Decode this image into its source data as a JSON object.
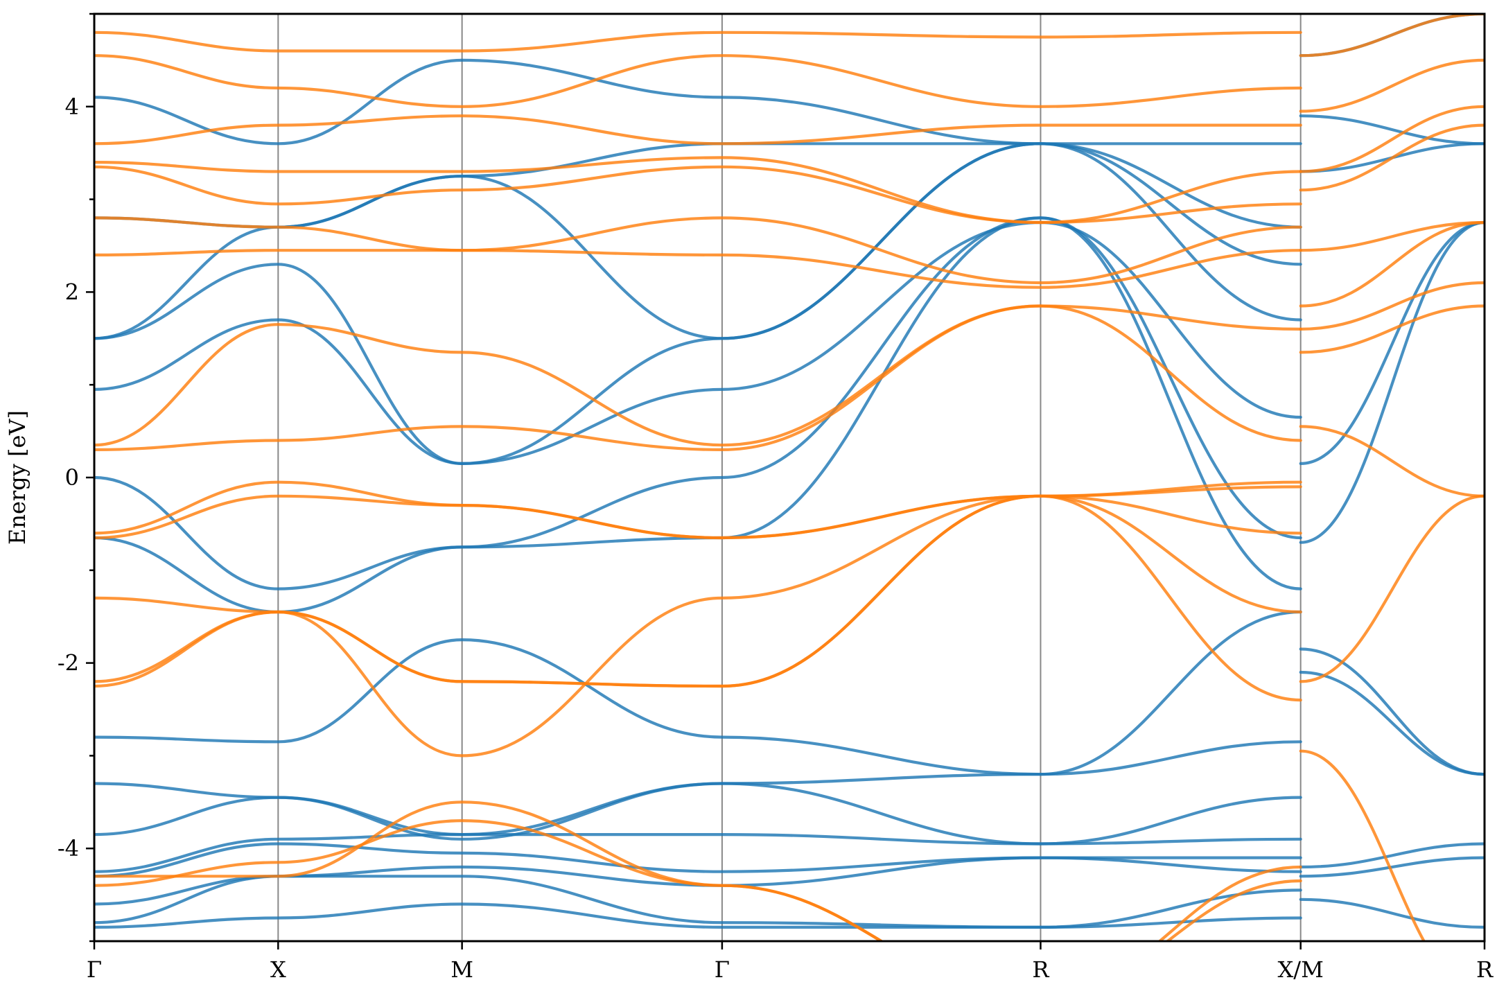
{
  "chart_data": {
    "type": "line",
    "ylabel": "Energy [eV]",
    "ylim": [
      -5,
      5
    ],
    "yticks": [
      -4,
      -2,
      0,
      2,
      4
    ],
    "kpoints": [
      {
        "label": "Γ",
        "k": 0.0
      },
      {
        "label": "X",
        "k": 0.5
      },
      {
        "label": "M",
        "k": 1.0
      },
      {
        "label": "Γ",
        "k": 1.7071
      },
      {
        "label": "R",
        "k": 2.5731
      },
      {
        "label": "X/M",
        "k": 3.2802
      },
      {
        "label": "R",
        "k": 3.7802
      }
    ],
    "colors": {
      "series_1": "#1f77b4",
      "series_2": "#ff7f0e"
    },
    "series": [
      {
        "color": "#1f77b4",
        "segments": [
          {
            "x": [
              0,
              0.5,
              1.0,
              1.7071,
              2.5731,
              3.2802
            ],
            "bands": [
              [
                -4.85,
                -4.75,
                -4.6,
                -4.85,
                -4.85,
                -4.75
              ],
              [
                -4.8,
                -4.3,
                -4.3,
                -4.8,
                -4.85,
                -4.45
              ],
              [
                -4.6,
                -4.3,
                -4.2,
                -4.4,
                -4.1,
                -4.25
              ],
              [
                -4.3,
                -3.95,
                -4.05,
                -4.25,
                -4.1,
                -4.1
              ],
              [
                -4.25,
                -3.9,
                -3.85,
                -3.85,
                -3.95,
                -3.9
              ],
              [
                -3.85,
                -3.45,
                -3.85,
                -3.3,
                -3.95,
                -3.45
              ],
              [
                -3.3,
                -3.45,
                -3.9,
                -3.3,
                -3.2,
                -2.85
              ],
              [
                -2.8,
                -2.85,
                -1.75,
                -2.8,
                -3.2,
                -1.45
              ],
              [
                -0.65,
                -1.45,
                -0.75,
                -0.65,
                2.8,
                -1.2
              ],
              [
                0.0,
                -1.2,
                -0.75,
                0.0,
                2.8,
                -0.65
              ],
              [
                0.95,
                1.7,
                0.15,
                0.95,
                2.75,
                0.65
              ],
              [
                1.5,
                2.3,
                0.15,
                1.5,
                3.6,
                1.7
              ],
              [
                1.5,
                2.7,
                3.25,
                1.5,
                3.6,
                2.3
              ],
              [
                2.8,
                2.7,
                3.25,
                3.6,
                3.6,
                2.7
              ],
              [
                4.1,
                3.6,
                4.5,
                4.1,
                3.6,
                3.6
              ]
            ]
          },
          {
            "x": [
              3.2802,
              3.7802
            ],
            "bands": [
              [
                -4.55,
                -4.85
              ],
              [
                -4.3,
                -4.1
              ],
              [
                -4.2,
                -3.95
              ],
              [
                -2.1,
                -3.2
              ],
              [
                -1.85,
                -3.2
              ],
              [
                -0.7,
                2.75
              ],
              [
                0.15,
                2.75
              ],
              [
                3.3,
                3.6
              ],
              [
                3.9,
                3.6
              ],
              [
                4.55,
                5.0
              ]
            ]
          }
        ]
      },
      {
        "color": "#ff7f0e",
        "segments": [
          {
            "x": [
              0,
              0.5,
              1.0,
              1.7071,
              2.5731,
              3.2802
            ],
            "bands": [
              [
                -4.4,
                -4.15,
                -3.7,
                -4.4,
                -5.6,
                -4.35
              ],
              [
                -4.3,
                -4.3,
                -3.5,
                -4.4,
                -5.6,
                -4.2
              ],
              [
                -2.25,
                -1.45,
                -2.2,
                -2.25,
                -0.2,
                -2.4
              ],
              [
                -2.2,
                -1.45,
                -2.2,
                -2.25,
                -0.2,
                -1.45
              ],
              [
                -1.3,
                -1.45,
                -3.0,
                -1.3,
                -0.2,
                -0.6
              ],
              [
                -0.65,
                -0.2,
                -0.3,
                -0.65,
                -0.2,
                -0.1
              ],
              [
                -0.6,
                -0.05,
                -0.3,
                -0.65,
                -0.2,
                -0.05
              ],
              [
                0.3,
                0.4,
                0.55,
                0.3,
                1.85,
                0.4
              ],
              [
                0.35,
                1.65,
                1.35,
                0.35,
                1.85,
                1.6
              ],
              [
                2.4,
                2.45,
                2.45,
                2.4,
                2.05,
                2.45
              ],
              [
                2.8,
                2.7,
                2.45,
                2.8,
                2.1,
                2.7
              ],
              [
                3.35,
                2.95,
                3.1,
                3.35,
                2.75,
                2.95
              ],
              [
                3.4,
                3.3,
                3.3,
                3.45,
                2.75,
                3.3
              ],
              [
                3.6,
                3.8,
                3.9,
                3.6,
                3.8,
                3.8
              ],
              [
                4.55,
                4.2,
                4.0,
                4.55,
                4.0,
                4.2
              ],
              [
                4.8,
                4.6,
                4.6,
                4.8,
                4.75,
                4.8
              ]
            ]
          },
          {
            "x": [
              3.2802,
              3.7802
            ],
            "bands": [
              [
                -2.95,
                -5.6
              ],
              [
                -2.2,
                -0.2
              ],
              [
                0.55,
                -0.2
              ],
              [
                1.35,
                1.85
              ],
              [
                1.6,
                2.1
              ],
              [
                1.85,
                2.75
              ],
              [
                2.45,
                2.75
              ],
              [
                3.1,
                3.8
              ],
              [
                3.3,
                4.0
              ],
              [
                3.95,
                4.5
              ],
              [
                4.55,
                5.0
              ]
            ]
          }
        ]
      }
    ]
  }
}
